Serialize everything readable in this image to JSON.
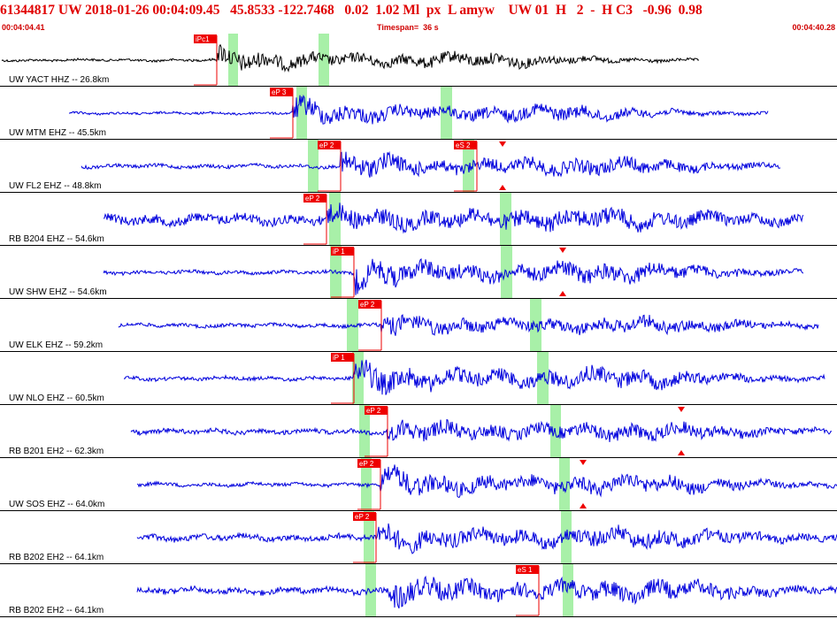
{
  "header": {
    "title": "61344817 UW 2018-01-26 00:04:09.45   45.8533 -122.7468   0.02  1.02 Ml  px  L amyw    UW 01  H   2  -  H C3   -0.96  0.98",
    "start_time": "00:04:04.41",
    "timespan": "Timespan=  36 s",
    "end_time": "00:04:40.28"
  },
  "colors": {
    "waveform": "#0000dd",
    "first_waveform": "#000000",
    "pick": "#ee0000",
    "window": "#a8f0a8",
    "label_bg": "#ffffff"
  },
  "traces": [
    {
      "label": "UW YACT HHZ -- 26.8km",
      "picks": [
        {
          "text": "iPc1"
        }
      ],
      "arrows": []
    },
    {
      "label": "UW MTM EHZ -- 45.5km",
      "picks": [
        {
          "text": "eP 3"
        }
      ],
      "arrows": []
    },
    {
      "label": "UW FL2 EHZ -- 48.8km",
      "picks": [
        {
          "text": "eP 2"
        },
        {
          "text": "eS 2"
        }
      ],
      "arrows": []
    },
    {
      "label": "RB B204 EHZ -- 54.6km",
      "picks": [
        {
          "text": "eP 2"
        }
      ],
      "arrows": []
    },
    {
      "label": "UW SHW EHZ -- 54.6km",
      "picks": [
        {
          "text": "iP 1"
        }
      ],
      "arrows": [
        "S"
      ]
    },
    {
      "label": "UW ELK EHZ -- 59.2km",
      "picks": [
        {
          "text": "eP 2"
        }
      ],
      "arrows": []
    },
    {
      "label": "UW NLO EHZ -- 60.5km",
      "picks": [
        {
          "text": "iP 1"
        }
      ],
      "arrows": []
    },
    {
      "label": "RB B201 EH2 -- 62.3km",
      "picks": [
        {
          "text": "eP 2"
        }
      ],
      "arrows": [
        "S"
      ]
    },
    {
      "label": "UW SOS EHZ -- 64.0km",
      "picks": [
        {
          "text": "eP 2"
        }
      ],
      "arrows": [
        "S"
      ]
    },
    {
      "label": "RB B202 EH2 -- 64.1km",
      "picks": [
        {
          "text": "eP 2"
        }
      ],
      "arrows": []
    },
    {
      "label": "RB B202 EH2 -- 64.1km",
      "picks": [
        {
          "text": "eS 1"
        }
      ],
      "arrows": []
    }
  ]
}
